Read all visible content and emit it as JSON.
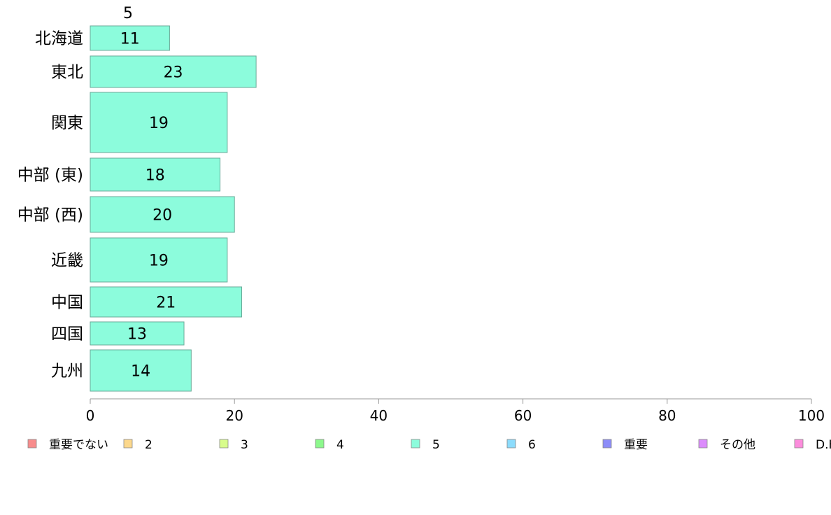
{
  "chart_data": {
    "type": "bar",
    "orientation": "horizontal",
    "title": "",
    "xlabel": "",
    "ylabel": "",
    "top_label": "5",
    "categories": [
      "北海道",
      "東北",
      "関東",
      "中部 (東)",
      "中部 (西)",
      "近畿",
      "中国",
      "四国",
      "九州"
    ],
    "series": [
      {
        "name": "5",
        "values": [
          11,
          23,
          19,
          18,
          20,
          19,
          21,
          13,
          14
        ],
        "color": "#8cfcdc"
      }
    ],
    "xlim": [
      0,
      100
    ],
    "xticks": [
      0,
      20,
      40,
      60,
      80,
      100
    ],
    "grid": false,
    "legend": {
      "placement": "bottom",
      "entries": [
        {
          "label": "重要でない",
          "color": "#f88c8c"
        },
        {
          "label": "2",
          "color": "#fcd88c"
        },
        {
          "label": "3",
          "color": "#d8fc8c"
        },
        {
          "label": "4",
          "color": "#8cf88c"
        },
        {
          "label": "5",
          "color": "#8cfcdc"
        },
        {
          "label": "6",
          "color": "#8cdcfc"
        },
        {
          "label": "重要",
          "color": "#8c8cf8"
        },
        {
          "label": "その他",
          "color": "#dc8cfc"
        },
        {
          "label": "D.K.",
          "color": "#fc8cdc"
        }
      ]
    }
  }
}
